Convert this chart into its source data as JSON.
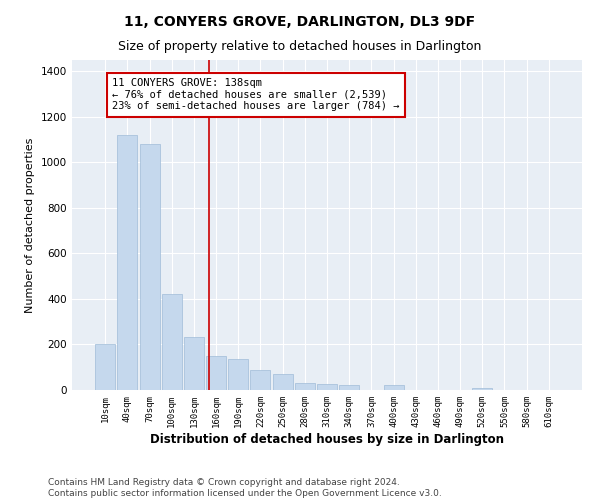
{
  "title": "11, CONYERS GROVE, DARLINGTON, DL3 9DF",
  "subtitle": "Size of property relative to detached houses in Darlington",
  "xlabel": "Distribution of detached houses by size in Darlington",
  "ylabel": "Number of detached properties",
  "bin_labels": [
    "10sqm",
    "40sqm",
    "70sqm",
    "100sqm",
    "130sqm",
    "160sqm",
    "190sqm",
    "220sqm",
    "250sqm",
    "280sqm",
    "310sqm",
    "340sqm",
    "370sqm",
    "400sqm",
    "430sqm",
    "460sqm",
    "490sqm",
    "520sqm",
    "550sqm",
    "580sqm",
    "610sqm"
  ],
  "bar_values": [
    200,
    1120,
    1080,
    420,
    235,
    150,
    135,
    90,
    70,
    30,
    25,
    20,
    0,
    20,
    0,
    0,
    0,
    10,
    0,
    0,
    0
  ],
  "bar_color": "#c5d8ed",
  "bar_edge_color": "#a0bcd8",
  "vline_color": "#cc0000",
  "annotation_text": "11 CONYERS GROVE: 138sqm\n← 76% of detached houses are smaller (2,539)\n23% of semi-detached houses are larger (784) →",
  "annotation_box_color": "#ffffff",
  "annotation_box_edge": "#cc0000",
  "ylim": [
    0,
    1450
  ],
  "yticks": [
    0,
    200,
    400,
    600,
    800,
    1000,
    1200,
    1400
  ],
  "background_color": "#e8eef5",
  "footer_text": "Contains HM Land Registry data © Crown copyright and database right 2024.\nContains public sector information licensed under the Open Government Licence v3.0.",
  "title_fontsize": 10,
  "subtitle_fontsize": 9,
  "annotation_fontsize": 7.5,
  "footer_fontsize": 6.5,
  "ylabel_fontsize": 8,
  "xlabel_fontsize": 8.5,
  "xtick_fontsize": 6.5,
  "ytick_fontsize": 7.5
}
